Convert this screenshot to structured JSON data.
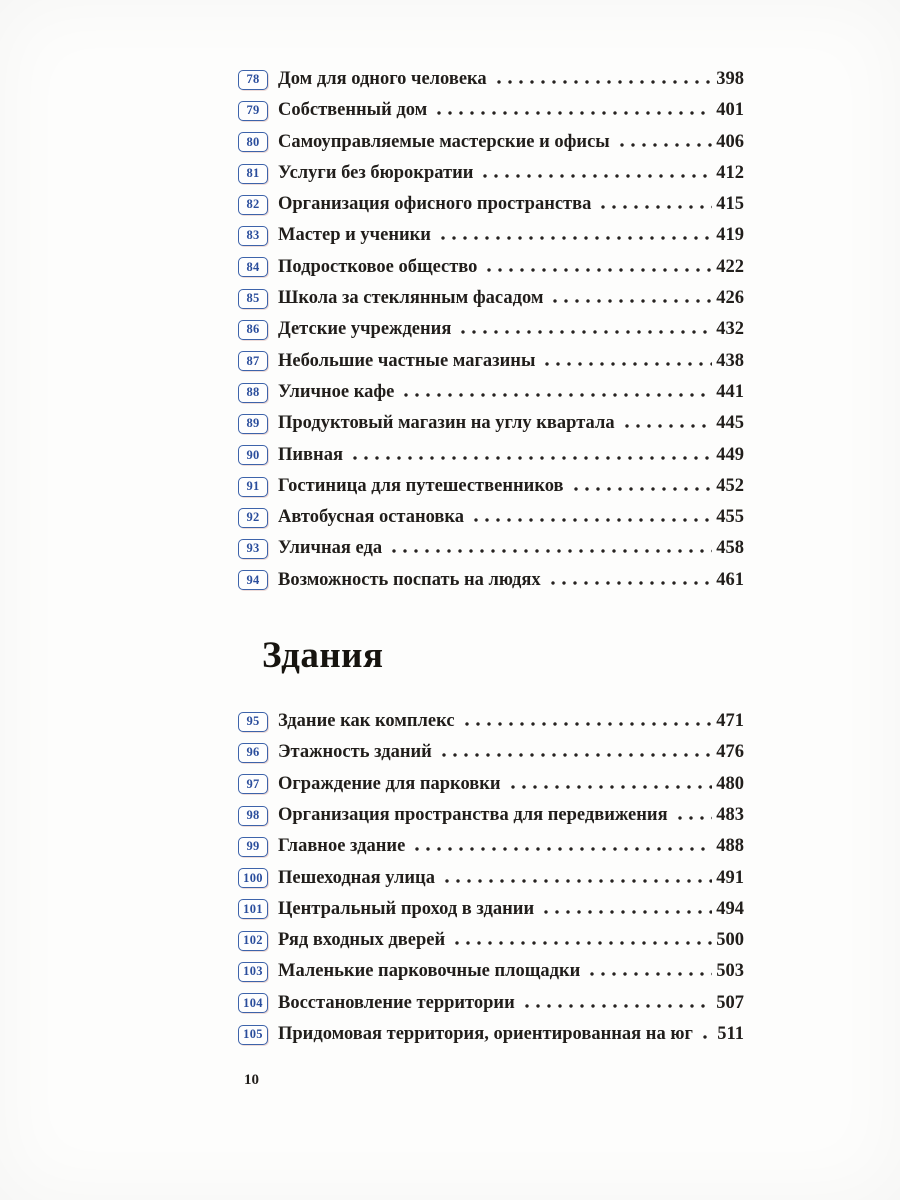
{
  "document": {
    "kind": "table-of-contents",
    "page_number": "10",
    "colors": {
      "badge_border_blue": "#3d63aa",
      "badge_text_blue": "#2a4d9c",
      "body_text": "#211e1b",
      "page_background": "#fdfdfc"
    },
    "sections": [
      {
        "heading": "",
        "entries": [
          {
            "num": "78",
            "title": "Дом для одного человека",
            "page": "398"
          },
          {
            "num": "79",
            "title": "Собственный дом",
            "page": "401"
          },
          {
            "num": "80",
            "title": "Самоуправляемые мастерские и офисы",
            "page": "406"
          },
          {
            "num": "81",
            "title": "Услуги без бюрократии",
            "page": "412"
          },
          {
            "num": "82",
            "title": "Организация офисного пространства",
            "page": "415"
          },
          {
            "num": "83",
            "title": "Мастер и ученики",
            "page": "419"
          },
          {
            "num": "84",
            "title": "Подростковое общество",
            "page": "422"
          },
          {
            "num": "85",
            "title": "Школа за стеклянным фасадом",
            "page": "426"
          },
          {
            "num": "86",
            "title": "Детские учреждения",
            "page": "432"
          },
          {
            "num": "87",
            "title": "Небольшие частные магазины",
            "page": "438"
          },
          {
            "num": "88",
            "title": "Уличное кафе",
            "page": "441"
          },
          {
            "num": "89",
            "title": "Продуктовый магазин на углу квартала",
            "page": "445"
          },
          {
            "num": "90",
            "title": "Пивная",
            "page": "449"
          },
          {
            "num": "91",
            "title": "Гостиница для путешественников",
            "page": "452"
          },
          {
            "num": "92",
            "title": "Автобусная остановка",
            "page": "455"
          },
          {
            "num": "93",
            "title": "Уличная еда",
            "page": "458"
          },
          {
            "num": "94",
            "title": "Возможность поспать на людях",
            "page": "461"
          }
        ]
      },
      {
        "heading": "Здания",
        "entries": [
          {
            "num": "95",
            "title": "Здание как комплекс",
            "page": "471"
          },
          {
            "num": "96",
            "title": "Этажность зданий",
            "page": "476"
          },
          {
            "num": "97",
            "title": "Ограждение для парковки",
            "page": "480"
          },
          {
            "num": "98",
            "title": "Организация пространства для передвижения",
            "page": "483"
          },
          {
            "num": "99",
            "title": "Главное здание",
            "page": "488"
          },
          {
            "num": "100",
            "title": "Пешеходная улица",
            "page": "491"
          },
          {
            "num": "101",
            "title": "Центральный проход в здании",
            "page": "494"
          },
          {
            "num": "102",
            "title": "Ряд входных дверей",
            "page": "500"
          },
          {
            "num": "103",
            "title": "Маленькие парковочные площадки",
            "page": "503"
          },
          {
            "num": "104",
            "title": "Восстановление территории",
            "page": "507"
          },
          {
            "num": "105",
            "title": "Придомовая территория, ориентированная на юг",
            "page": "511"
          }
        ]
      }
    ]
  }
}
